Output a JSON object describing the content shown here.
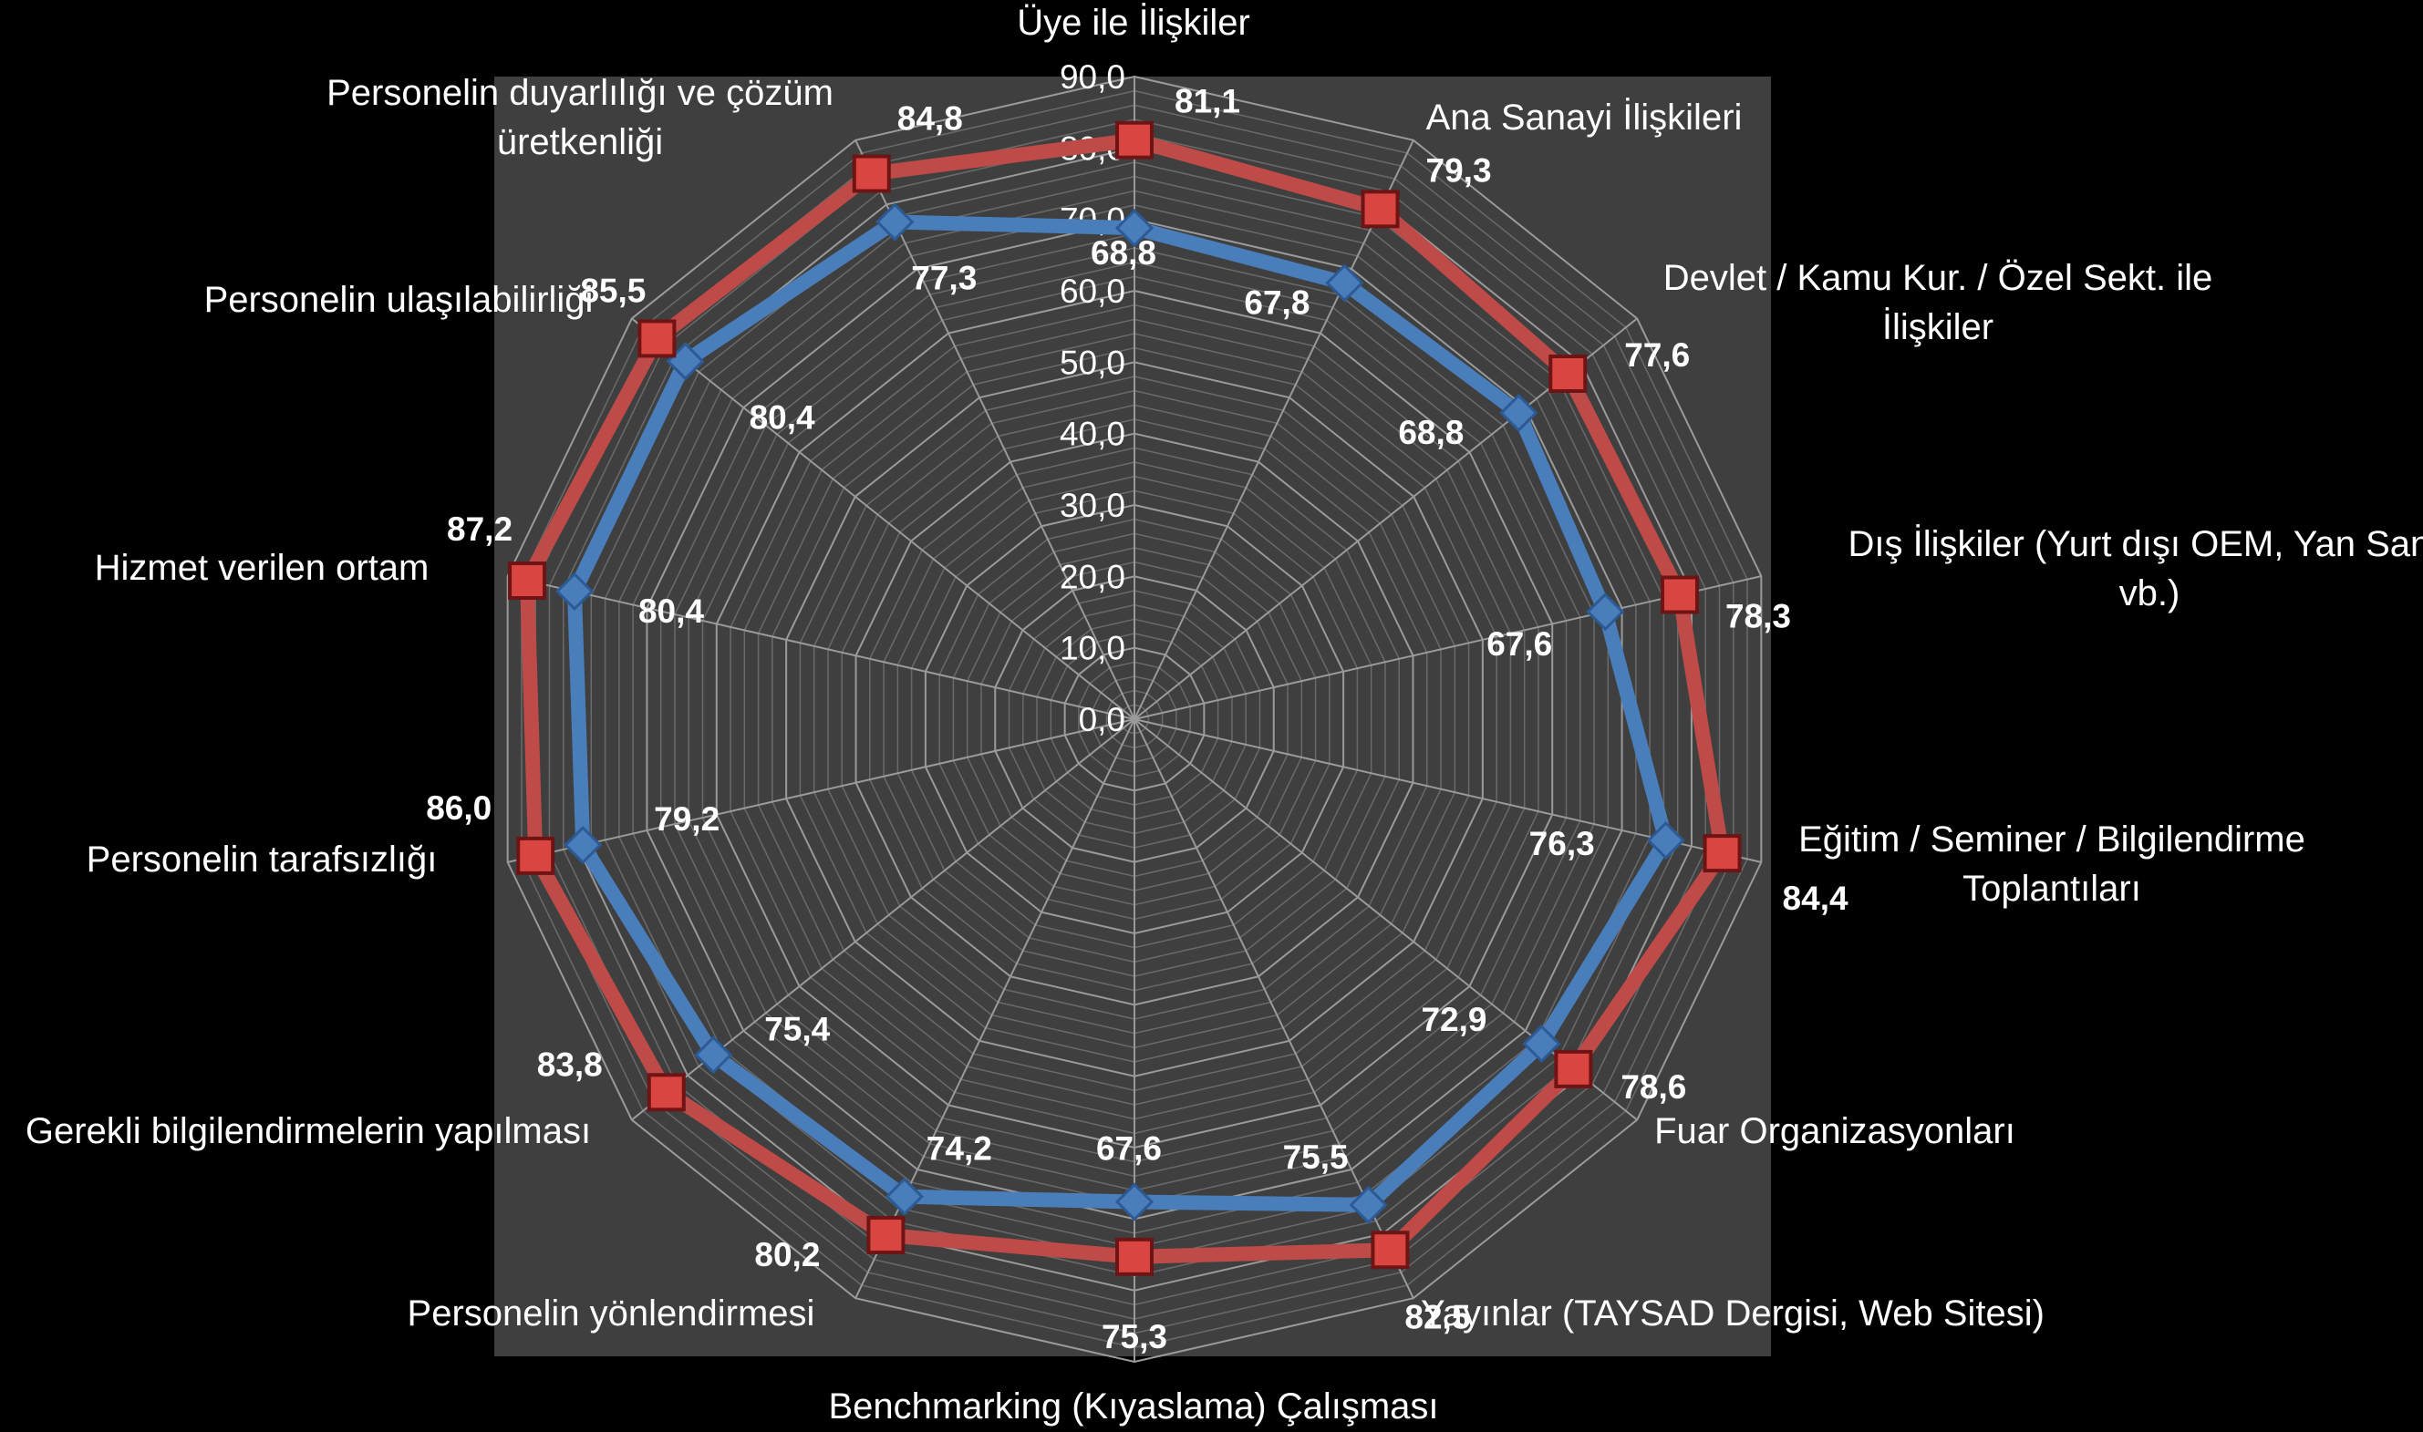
{
  "chart_data": {
    "type": "radar",
    "title": "",
    "categories": [
      "Üye ile İlişkiler",
      "Ana Sanayi İlişkileri",
      "Devlet / Kamu Kur. / Özel Sekt. ile İlişkiler",
      "Dış İlişkiler (Yurt dışı OEM, Yan San., vb.)",
      "Eğitim / Seminer / Bilgilendirme Toplantıları",
      "Fuar Organizasyonları",
      "Yayınlar (TAYSAD Dergisi, Web Sitesi)",
      "Benchmarking (Kıyaslama) Çalışması",
      "Personelin yönlendirmesi",
      "Gerekli bilgilendirmelerin yapılması",
      "Personelin tarafsızlığı",
      "Hizmet verilen ortam",
      "Personelin ulaşılabilirliği",
      "Personelin duyarlılığı ve çözüm üretkenliği"
    ],
    "category_label_lines": [
      [
        "Üye ile İlişkiler"
      ],
      [
        "Ana Sanayi İlişkileri"
      ],
      [
        "Devlet / Kamu Kur. / Özel Sekt. ile",
        "İlişkiler"
      ],
      [
        "Dış İlişkiler (Yurt dışı OEM, Yan San.,",
        "vb.)"
      ],
      [
        "Eğitim / Seminer / Bilgilendirme",
        "Toplantıları"
      ],
      [
        "Fuar Organizasyonları"
      ],
      [
        "Yayınlar (TAYSAD Dergisi, Web Sitesi)"
      ],
      [
        "Benchmarking (Kıyaslama) Çalışması"
      ],
      [
        "Personelin yönlendirmesi"
      ],
      [
        "Gerekli bilgilendirmelerin yapılması"
      ],
      [
        "Personelin tarafsızlığı"
      ],
      [
        "Hizmet verilen ortam"
      ],
      [
        "Personelin ulaşılabilirliği"
      ],
      [
        "Personelin duyarlılığı ve çözüm",
        "üretkenliği"
      ]
    ],
    "series": [
      {
        "values": [
          68.8,
          67.8,
          68.8,
          67.6,
          76.3,
          72.9,
          75.5,
          67.6,
          74.2,
          75.4,
          79.2,
          80.4,
          80.4,
          77.3
        ],
        "labels": [
          "68,8",
          "67,8",
          "68,8",
          "67,6",
          "76,3",
          "72,9",
          "75,5",
          "67,6",
          "74,2",
          "75,4",
          "79,2",
          "80,4",
          "80,4",
          "77,3"
        ],
        "color": "#4a7ebb",
        "marker": "diamond"
      },
      {
        "values": [
          81.1,
          79.3,
          77.6,
          78.3,
          84.4,
          78.6,
          82.5,
          75.3,
          80.2,
          83.8,
          86.0,
          87.2,
          85.5,
          84.8
        ],
        "labels": [
          "81,1",
          "79,3",
          "77,6",
          "78,3",
          "84,4",
          "78,6",
          "82,5",
          "75,3",
          "80,2",
          "83,8",
          "86,0",
          "87,2",
          "85,5",
          "84,8"
        ],
        "color": "#be4b48",
        "marker": "square"
      }
    ],
    "radial_axis": {
      "min": 0,
      "max": 90,
      "ticks": [
        "0,0",
        "10,0",
        "20,0",
        "30,0",
        "40,0",
        "50,0",
        "60,0",
        "70,0",
        "80,0",
        "90,0"
      ]
    },
    "grid": true,
    "legend": "none",
    "colors": {
      "page_background": "#000000",
      "plot_background": "#3f3f3f",
      "grid": "#8c8c8c",
      "text": "#ffffff"
    }
  }
}
